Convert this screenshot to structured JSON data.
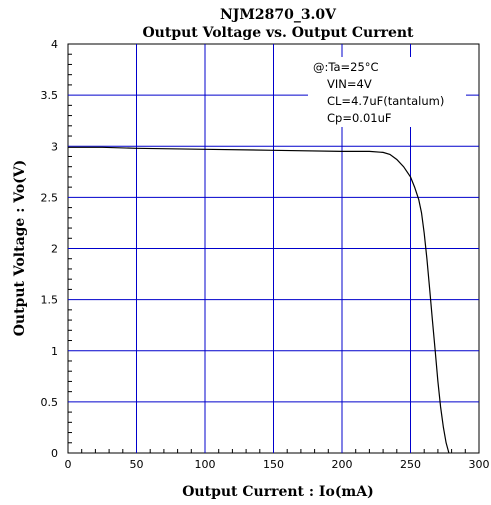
{
  "chart_data": {
    "type": "line",
    "title": "NJM2870_3.0V",
    "subtitle": "Output Voltage vs. Output Current",
    "xlabel": "Output Current : Io(mA)",
    "ylabel": "Output Voltage : Vo(V)",
    "xlim": [
      0,
      300
    ],
    "ylim": [
      0,
      4
    ],
    "x_ticks": [
      0,
      50,
      100,
      150,
      200,
      250,
      300
    ],
    "y_ticks": [
      0,
      0.5,
      1,
      1.5,
      2,
      2.5,
      3,
      3.5,
      4
    ],
    "x_tick_labels": [
      "0",
      "50",
      "100",
      "150",
      "200",
      "250",
      "300"
    ],
    "y_tick_labels": [
      "0",
      "0.5",
      "1",
      "1.5",
      "2",
      "2.5",
      "3",
      "3.5",
      "4"
    ],
    "grid": true,
    "annotations": [
      "@:Ta=25°C",
      "VIN=4V",
      "CL=4.7uF(tantalum)",
      "Cp=0.01uF"
    ],
    "series": [
      {
        "color": "#000000",
        "x": [
          0,
          25,
          50,
          100,
          150,
          200,
          220,
          230,
          235,
          240,
          245,
          250,
          253,
          256,
          258,
          260,
          262,
          264,
          266,
          268,
          270,
          272,
          274,
          276,
          278
        ],
        "y": [
          2.99,
          2.99,
          2.98,
          2.97,
          2.96,
          2.95,
          2.95,
          2.94,
          2.92,
          2.87,
          2.8,
          2.7,
          2.6,
          2.48,
          2.35,
          2.15,
          1.9,
          1.6,
          1.3,
          1.0,
          0.7,
          0.45,
          0.25,
          0.1,
          0.0
        ]
      }
    ],
    "grid_color": "#0000cc"
  }
}
